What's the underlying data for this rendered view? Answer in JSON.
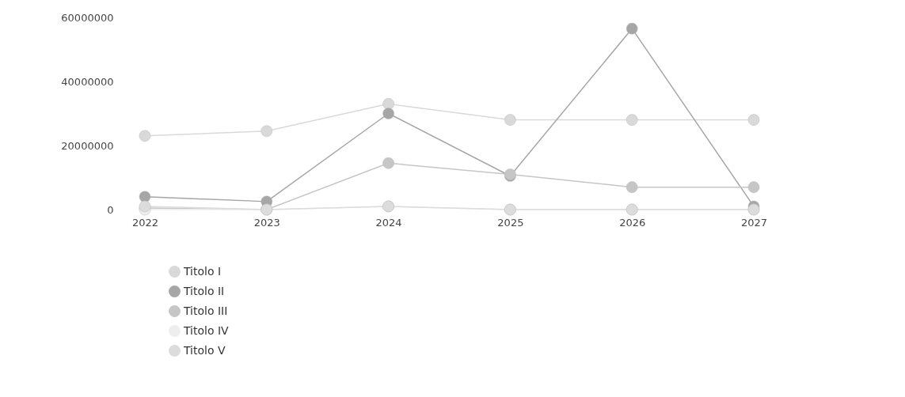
{
  "chart_data": {
    "type": "line",
    "categories": [
      "2022",
      "2023",
      "2024",
      "2025",
      "2026",
      "2027"
    ],
    "series": [
      {
        "name": "Titolo I",
        "color": "#d9d9d9",
        "values": [
          23000000,
          24500000,
          33000000,
          28000000,
          28000000,
          28000000
        ]
      },
      {
        "name": "Titolo II",
        "color": "#a6a6a6",
        "values": [
          4000000,
          2500000,
          30000000,
          10500000,
          56500000,
          1000000
        ]
      },
      {
        "name": "Titolo III",
        "color": "#c6c6c6",
        "values": [
          500000,
          0,
          14500000,
          11000000,
          7000000,
          7000000
        ]
      },
      {
        "name": "Titolo IV",
        "color": "#eeeeee",
        "values": [
          0,
          0,
          1000000,
          0,
          0,
          0
        ]
      },
      {
        "name": "Titolo V",
        "color": "#dcdcdc",
        "values": [
          1000000,
          0,
          1000000,
          0,
          0,
          0
        ]
      }
    ],
    "ylim": [
      0,
      60000000
    ],
    "yticks": [
      0,
      20000000,
      40000000,
      60000000
    ],
    "grid": false,
    "legend": "bottom",
    "marker": "circle",
    "line_style": "solid"
  }
}
